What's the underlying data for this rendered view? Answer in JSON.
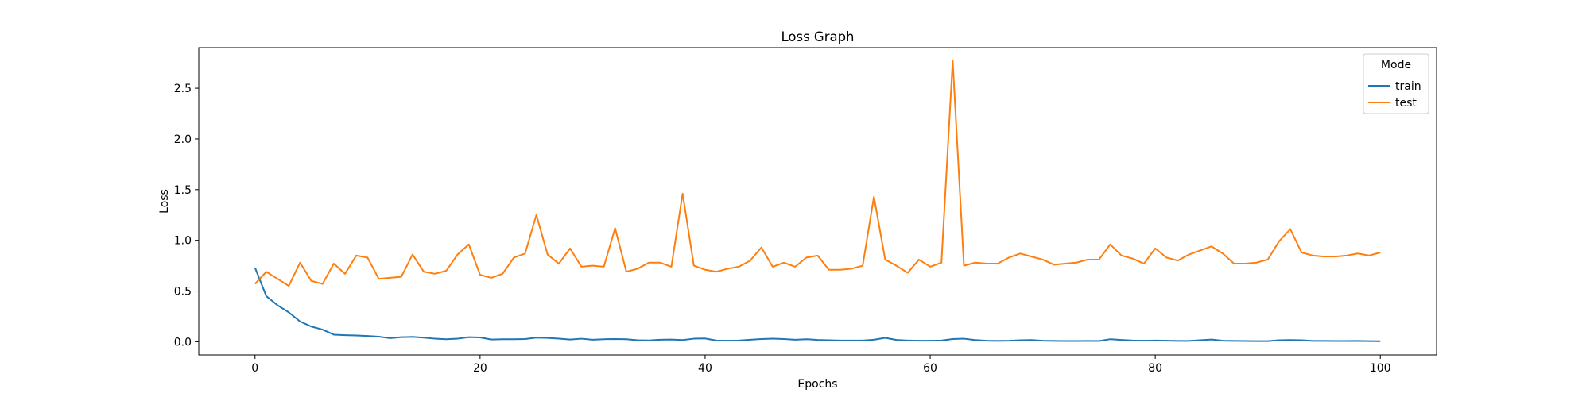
{
  "chart_data": {
    "type": "line",
    "title": "Loss Graph",
    "xlabel": "Epochs",
    "ylabel": "Loss",
    "xlim": [
      -5,
      105
    ],
    "ylim": [
      -0.13,
      2.9
    ],
    "xticks": [
      0,
      20,
      40,
      60,
      80,
      100
    ],
    "yticks": [
      0.0,
      0.5,
      1.0,
      1.5,
      2.0,
      2.5
    ],
    "ytick_labels": [
      "0.0",
      "0.5",
      "1.0",
      "1.5",
      "2.0",
      "2.5"
    ],
    "grid": false,
    "legend": {
      "title": "Mode",
      "placement": "top-right"
    },
    "x": [
      0,
      1,
      2,
      3,
      4,
      5,
      6,
      7,
      8,
      9,
      10,
      11,
      12,
      13,
      14,
      15,
      16,
      17,
      18,
      19,
      20,
      21,
      22,
      23,
      24,
      25,
      26,
      27,
      28,
      29,
      30,
      31,
      32,
      33,
      34,
      35,
      36,
      37,
      38,
      39,
      40,
      41,
      42,
      43,
      44,
      45,
      46,
      47,
      48,
      49,
      50,
      51,
      52,
      53,
      54,
      55,
      56,
      57,
      58,
      59,
      60,
      61,
      62,
      63,
      64,
      65,
      66,
      67,
      68,
      69,
      70,
      71,
      72,
      73,
      74,
      75,
      76,
      77,
      78,
      79,
      80,
      81,
      82,
      83,
      84,
      85,
      86,
      87,
      88,
      89,
      90,
      91,
      92,
      93,
      94,
      95,
      96,
      97,
      98,
      99,
      100
    ],
    "series": [
      {
        "name": "train",
        "color": "#1f77b4",
        "values": [
          0.73,
          0.45,
          0.36,
          0.29,
          0.2,
          0.15,
          0.12,
          0.07,
          0.065,
          0.062,
          0.057,
          0.05,
          0.035,
          0.045,
          0.048,
          0.04,
          0.03,
          0.025,
          0.03,
          0.045,
          0.042,
          0.022,
          0.025,
          0.025,
          0.027,
          0.04,
          0.037,
          0.03,
          0.022,
          0.03,
          0.02,
          0.025,
          0.027,
          0.025,
          0.015,
          0.013,
          0.02,
          0.022,
          0.017,
          0.03,
          0.032,
          0.012,
          0.01,
          0.012,
          0.02,
          0.027,
          0.03,
          0.027,
          0.02,
          0.025,
          0.018,
          0.015,
          0.012,
          0.012,
          0.012,
          0.02,
          0.038,
          0.018,
          0.012,
          0.01,
          0.01,
          0.012,
          0.027,
          0.03,
          0.017,
          0.01,
          0.008,
          0.01,
          0.015,
          0.017,
          0.01,
          0.008,
          0.007,
          0.007,
          0.008,
          0.007,
          0.025,
          0.018,
          0.012,
          0.01,
          0.012,
          0.01,
          0.008,
          0.008,
          0.015,
          0.022,
          0.01,
          0.008,
          0.007,
          0.006,
          0.006,
          0.015,
          0.017,
          0.015,
          0.008,
          0.008,
          0.007,
          0.007,
          0.008,
          0.006,
          0.005
        ]
      },
      {
        "name": "test",
        "color": "#ff7f0e",
        "values": [
          0.57,
          0.69,
          0.62,
          0.55,
          0.78,
          0.6,
          0.57,
          0.77,
          0.67,
          0.85,
          0.83,
          0.62,
          0.63,
          0.64,
          0.86,
          0.69,
          0.67,
          0.7,
          0.86,
          0.96,
          0.66,
          0.63,
          0.67,
          0.83,
          0.87,
          1.25,
          0.86,
          0.77,
          0.92,
          0.74,
          0.75,
          0.74,
          1.12,
          0.69,
          0.72,
          0.78,
          0.78,
          0.74,
          1.46,
          0.75,
          0.71,
          0.69,
          0.72,
          0.74,
          0.8,
          0.93,
          0.74,
          0.78,
          0.74,
          0.83,
          0.85,
          0.71,
          0.71,
          0.72,
          0.75,
          1.43,
          0.81,
          0.75,
          0.68,
          0.81,
          0.74,
          0.78,
          2.77,
          0.75,
          0.78,
          0.77,
          0.77,
          0.83,
          0.87,
          0.84,
          0.81,
          0.76,
          0.77,
          0.78,
          0.81,
          0.81,
          0.96,
          0.85,
          0.82,
          0.77,
          0.92,
          0.83,
          0.8,
          0.86,
          0.9,
          0.94,
          0.87,
          0.77,
          0.77,
          0.78,
          0.81,
          0.99,
          1.11,
          0.88,
          0.85,
          0.84,
          0.84,
          0.85,
          0.87,
          0.85,
          0.88
        ]
      }
    ]
  }
}
